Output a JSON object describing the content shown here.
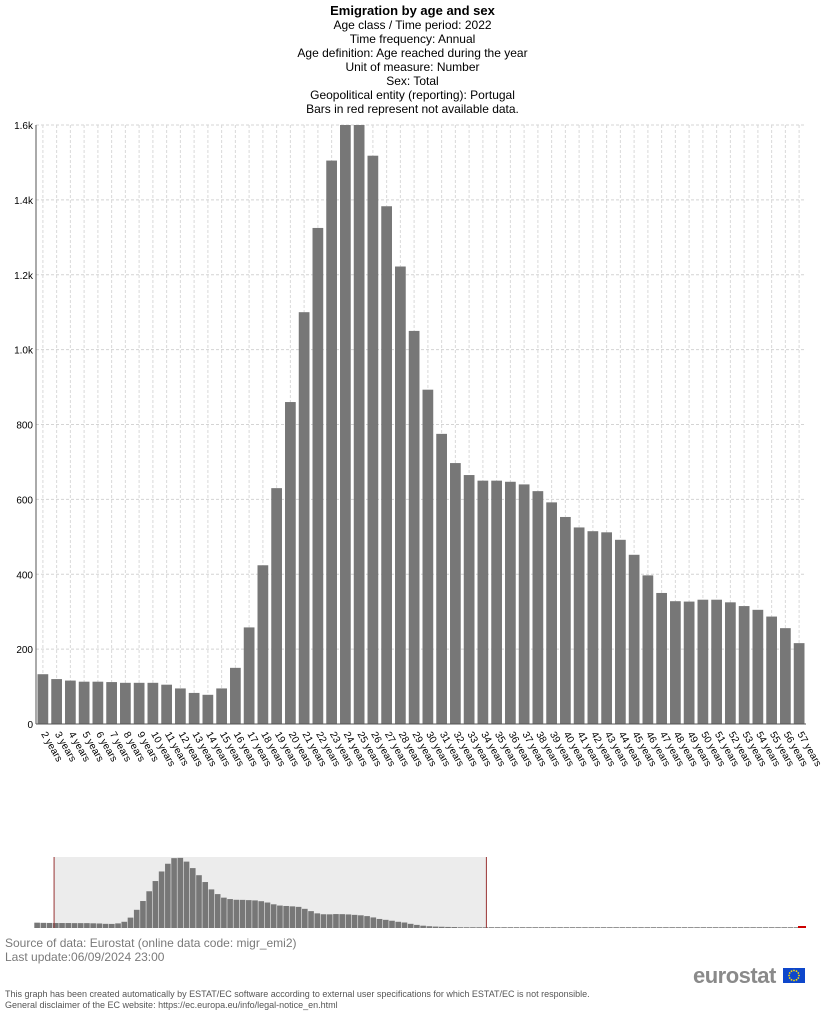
{
  "header": {
    "title": "Emigration by age and sex",
    "lines": [
      "Age class / Time period: 2022",
      "Time frequency: Annual",
      "Age definition: Age reached during the year",
      "Unit of measure: Number",
      "Sex: Total",
      "Geopolitical entity (reporting): Portugal",
      "Bars in red represent not available data."
    ]
  },
  "chart_data": {
    "type": "bar",
    "title": "Emigration by age and sex",
    "xlabel": "",
    "ylabel": "",
    "ylim": [
      0,
      1600
    ],
    "yticks": [
      {
        "value": 0,
        "label": "0"
      },
      {
        "value": 200,
        "label": "200"
      },
      {
        "value": 400,
        "label": "400"
      },
      {
        "value": 600,
        "label": "600"
      },
      {
        "value": 800,
        "label": "800"
      },
      {
        "value": 1000,
        "label": "1.0k"
      },
      {
        "value": 1200,
        "label": "1.2k"
      },
      {
        "value": 1400,
        "label": "1.4k"
      },
      {
        "value": 1600,
        "label": "1.6k"
      }
    ],
    "grid": true,
    "bar_color": "#777777",
    "categories": [
      "2 years",
      "3 years",
      "4 years",
      "5 years",
      "6 years",
      "7 years",
      "8 years",
      "9 years",
      "10 years",
      "11 years",
      "12 years",
      "13 years",
      "14 years",
      "15 years",
      "16 years",
      "17 years",
      "18 years",
      "19 years",
      "20 years",
      "21 years",
      "22 years",
      "23 years",
      "24 years",
      "25 years",
      "26 years",
      "27 years",
      "28 years",
      "29 years",
      "30 years",
      "31 years",
      "32 years",
      "33 years",
      "34 years",
      "35 years",
      "36 years",
      "37 years",
      "38 years",
      "39 years",
      "40 years",
      "41 years",
      "42 years",
      "43 years",
      "44 years",
      "45 years",
      "46 years",
      "47 years",
      "48 years",
      "49 years",
      "50 years",
      "51 years",
      "52 years",
      "53 years",
      "54 years",
      "55 years",
      "56 years",
      "57 years"
    ],
    "values": [
      133,
      120,
      116,
      113,
      113,
      112,
      110,
      110,
      110,
      105,
      95,
      83,
      78,
      95,
      150,
      258,
      424,
      630,
      860,
      1100,
      1325,
      1505,
      1600,
      1600,
      1518,
      1383,
      1222,
      1050,
      893,
      775,
      697,
      665,
      650,
      650,
      647,
      640,
      622,
      592,
      553,
      525,
      515,
      512,
      492,
      452,
      397,
      350,
      328,
      327,
      332,
      332,
      325,
      315,
      305,
      287,
      256,
      216
    ]
  },
  "navigator": {
    "bar_color": "#777777",
    "missing_color": "#cc0000",
    "window_fill": "#ececec",
    "handle_color": "#993333",
    "window_start_fraction": 0.026,
    "window_end_fraction": 0.586,
    "values": [
      60,
      58,
      57,
      56,
      56,
      56,
      55,
      55,
      55,
      53,
      51,
      47,
      46,
      52,
      70,
      117,
      205,
      304,
      414,
      529,
      637,
      724,
      787,
      790,
      748,
      675,
      595,
      518,
      435,
      382,
      342,
      326,
      318,
      317,
      314,
      311,
      302,
      287,
      267,
      253,
      248,
      244,
      238,
      216,
      190,
      165,
      155,
      154,
      157,
      156,
      153,
      148,
      143,
      134,
      119,
      102,
      92,
      82,
      70,
      62,
      47,
      35,
      26,
      20,
      16,
      14,
      12,
      11,
      10,
      10,
      10,
      10,
      10,
      10,
      10,
      10,
      10,
      10,
      10,
      10,
      10,
      10,
      10,
      10,
      10,
      10,
      10,
      10,
      10,
      10,
      10,
      10,
      10,
      10,
      10,
      10,
      10,
      10,
      10,
      10,
      10,
      10,
      10,
      10,
      10,
      10,
      10,
      10,
      10,
      10,
      10,
      10,
      10,
      10,
      10,
      10,
      10,
      10,
      10,
      10,
      10,
      10,
      10,
      10
    ]
  },
  "footer": {
    "source": "Source of data: Eurostat (online data code: migr_emi2)",
    "last_update": "Last update:06/09/2024 23:00",
    "disclaimer_1": "This graph has been created automatically by ESTAT/EC software according to external user specifications for which ESTAT/EC is not responsible.",
    "disclaimer_2": "General disclaimer of the EC website: https://ec.europa.eu/info/legal-notice_en.html",
    "logo_text": "eurostat"
  }
}
